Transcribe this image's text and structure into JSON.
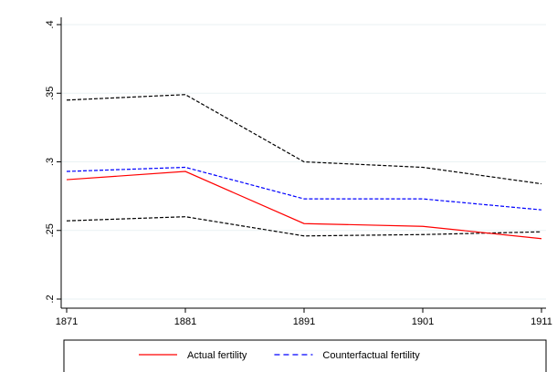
{
  "chart_data": {
    "type": "line",
    "x": [
      1871,
      1881,
      1891,
      1901,
      1911
    ],
    "xlim": [
      1871,
      1911
    ],
    "xticks": [
      1871,
      1881,
      1891,
      1901,
      1911
    ],
    "ylim": [
      0.2,
      0.4
    ],
    "yticks": [
      {
        "value": 0.2,
        "label": ".2"
      },
      {
        "value": 0.25,
        "label": ".25"
      },
      {
        "value": 0.3,
        "label": ".3"
      },
      {
        "value": 0.35,
        "label": ".35"
      },
      {
        "value": 0.4,
        "label": ".4"
      }
    ],
    "grid": true,
    "legend": "bottom",
    "series": [
      {
        "color": "#000000",
        "dashed": true,
        "values": [
          0.345,
          0.349,
          0.3,
          0.296,
          0.284
        ]
      },
      {
        "color": "#000000",
        "dashed": true,
        "values": [
          0.257,
          0.26,
          0.246,
          0.247,
          0.249
        ]
      },
      {
        "name": "Actual fertility",
        "color": "#ff0000",
        "dashed": false,
        "values": [
          0.287,
          0.293,
          0.255,
          0.253,
          0.244
        ]
      },
      {
        "name": "Counterfactual fertility",
        "color": "#0000ff",
        "dashed": true,
        "values": [
          0.293,
          0.296,
          0.273,
          0.273,
          0.265
        ]
      }
    ]
  }
}
